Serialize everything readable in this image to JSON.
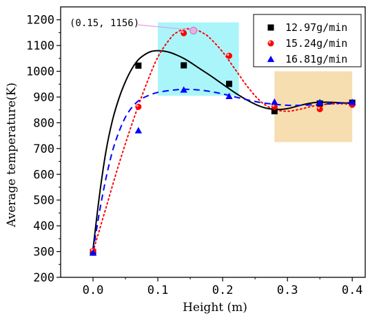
{
  "chart_data": {
    "type": "scatter",
    "xlabel": "Height (m)",
    "ylabel": "Average temperature(K)",
    "xlim": [
      -0.05,
      0.42
    ],
    "ylim": [
      200,
      1250
    ],
    "x_ticks": [
      0.0,
      0.1,
      0.2,
      0.3,
      0.4
    ],
    "x_tick_labels": [
      "0.0",
      "0.1",
      "0.2",
      "0.3",
      "0.4"
    ],
    "y_ticks": [
      200,
      300,
      400,
      500,
      600,
      700,
      800,
      900,
      1000,
      1100,
      1200
    ],
    "y_tick_labels": [
      "200",
      "300",
      "400",
      "500",
      "600",
      "700",
      "800",
      "900",
      "1000",
      "1100",
      "1200"
    ],
    "grid": false,
    "legend_position": "top-right",
    "series": [
      {
        "name": "12.97g/min",
        "marker": "square",
        "color": "#000000",
        "line_style": "solid",
        "x": [
          0.0,
          0.07,
          0.14,
          0.21,
          0.28,
          0.35,
          0.4
        ],
        "y": [
          298,
          1022,
          1023,
          951,
          845,
          875,
          878
        ],
        "fit_x": [
          0.0,
          0.01,
          0.02,
          0.03,
          0.04,
          0.05,
          0.06,
          0.07,
          0.08,
          0.09,
          0.1,
          0.11,
          0.12,
          0.13,
          0.14,
          0.15,
          0.16,
          0.18,
          0.2,
          0.22,
          0.24,
          0.26,
          0.28,
          0.3,
          0.32,
          0.34,
          0.36,
          0.38,
          0.4
        ],
        "fit_y": [
          310,
          520,
          690,
          810,
          895,
          960,
          1010,
          1045,
          1065,
          1077,
          1080,
          1078,
          1072,
          1062,
          1050,
          1035,
          1018,
          985,
          950,
          915,
          885,
          862,
          852,
          855,
          868,
          878,
          880,
          878,
          875
        ]
      },
      {
        "name": "15.24g/min",
        "marker": "circle",
        "color": "#ff0000",
        "line_style": "dotted",
        "x": [
          0.0,
          0.07,
          0.14,
          0.21,
          0.28,
          0.35,
          0.4
        ],
        "y": [
          303,
          862,
          1148,
          1060,
          862,
          853,
          870
        ],
        "fit_x": [
          0.0,
          0.02,
          0.04,
          0.06,
          0.08,
          0.1,
          0.12,
          0.13,
          0.14,
          0.15,
          0.16,
          0.17,
          0.18,
          0.2,
          0.22,
          0.24,
          0.26,
          0.28,
          0.3,
          0.32,
          0.34,
          0.36,
          0.38,
          0.4
        ],
        "fit_y": [
          300,
          470,
          640,
          795,
          935,
          1055,
          1130,
          1152,
          1163,
          1165,
          1160,
          1148,
          1130,
          1075,
          1005,
          935,
          880,
          852,
          845,
          853,
          865,
          872,
          874,
          872
        ]
      },
      {
        "name": "16.81g/min",
        "marker": "triangle",
        "color": "#0000ff",
        "line_style": "dashed",
        "x": [
          0.0,
          0.07,
          0.14,
          0.21,
          0.28,
          0.35,
          0.4
        ],
        "y": [
          295,
          770,
          928,
          903,
          881,
          879,
          880
        ],
        "fit_x": [
          0.0,
          0.01,
          0.02,
          0.03,
          0.04,
          0.05,
          0.06,
          0.07,
          0.08,
          0.09,
          0.1,
          0.12,
          0.14,
          0.16,
          0.18,
          0.2,
          0.22,
          0.24,
          0.26,
          0.28,
          0.3,
          0.32,
          0.34,
          0.36,
          0.38,
          0.4
        ],
        "fit_y": [
          300,
          455,
          585,
          690,
          765,
          822,
          860,
          885,
          900,
          910,
          918,
          926,
          930,
          928,
          922,
          912,
          900,
          888,
          878,
          872,
          868,
          868,
          870,
          873,
          876,
          878
        ]
      }
    ],
    "highlight_regions": [
      {
        "x": [
          0.1,
          0.225
        ],
        "y": [
          905,
          1190
        ],
        "color": "#aaf5fa"
      },
      {
        "x": [
          0.28,
          0.4
        ],
        "y": [
          725,
          1000
        ],
        "color": "#f6deb0"
      }
    ],
    "annotation": {
      "text": "(0.15, 1156)",
      "x": 0.155,
      "y": 1158,
      "marker_color": "#e8b0e8",
      "arrow_color": "#e0a0e0"
    }
  }
}
